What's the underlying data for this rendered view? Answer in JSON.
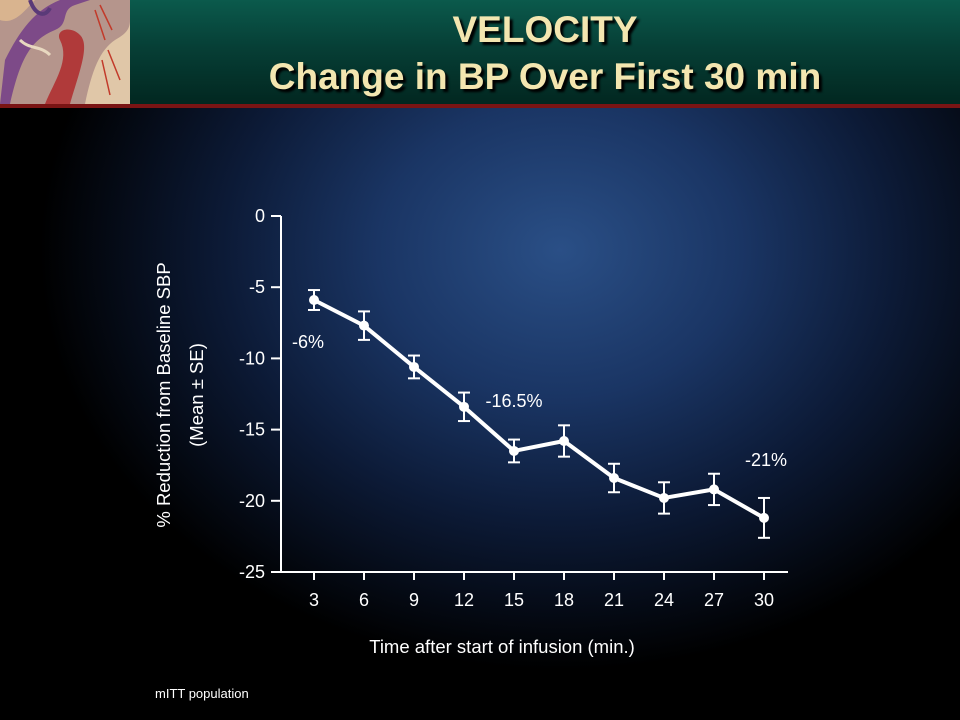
{
  "header": {
    "title_line1": "VELOCITY",
    "title_line2": "Change in BP Over First 30 min"
  },
  "footnote": "mITT population",
  "colors": {
    "header_band": "#063f36",
    "header_rule": "#7a1414",
    "title_text": "#f3e6b0",
    "series_line": "#ffffff"
  },
  "chart_data": {
    "type": "line",
    "x": [
      3,
      6,
      9,
      12,
      15,
      18,
      21,
      24,
      27,
      30
    ],
    "x_tick_labels": [
      "3",
      "6",
      "9",
      "12",
      "15",
      "18",
      "21",
      "24",
      "27",
      "30"
    ],
    "series": [
      {
        "values": [
          -5.9,
          -7.7,
          -10.6,
          -13.4,
          -16.5,
          -15.8,
          -18.4,
          -19.8,
          -19.2,
          -21.2
        ],
        "error": [
          0.7,
          1.0,
          0.8,
          1.0,
          0.8,
          1.1,
          1.0,
          1.1,
          1.1,
          1.4
        ]
      }
    ],
    "ylim": [
      -25,
      0
    ],
    "y_ticks": [
      0,
      -5,
      -10,
      -15,
      -20,
      -25
    ],
    "y_tick_labels": [
      "0",
      "-5",
      "-10",
      "-15",
      "-20",
      "-25"
    ],
    "xlabel": "Time after start of infusion (min.)",
    "ylabel_line1": "% Reduction from Baseline SBP",
    "ylabel_line2": "(Mean ± SE)",
    "annotations": [
      {
        "text": "-6%",
        "x": 3
      },
      {
        "text": "-16.5%",
        "x": 15
      },
      {
        "text": "-21%",
        "x": 30
      }
    ],
    "grid": false,
    "legend": "none"
  }
}
